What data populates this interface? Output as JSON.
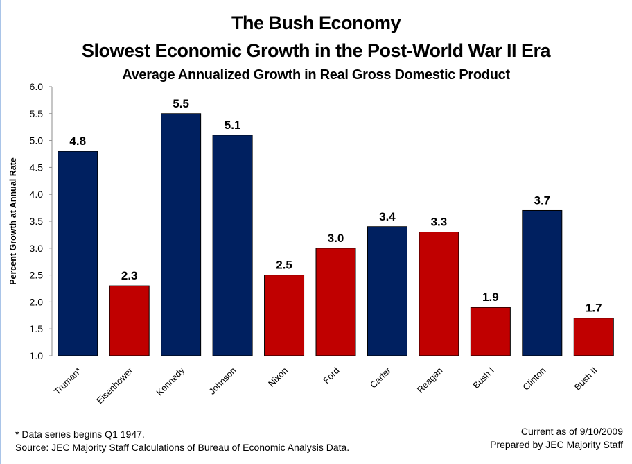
{
  "chart_data": {
    "type": "bar",
    "title": "The Bush Economy",
    "subtitle": "Slowest Economic Growth in the Post-World War II Era",
    "subtitle2": "Average Annualized Growth in Real Gross Domestic Product",
    "xlabel": "",
    "ylabel": "Percent Growth at Annual Rate",
    "ylim": [
      1.0,
      6.0
    ],
    "yticks": [
      "1.0",
      "1.5",
      "2.0",
      "2.5",
      "3.0",
      "3.5",
      "4.0",
      "4.5",
      "5.0",
      "5.5",
      "6.0"
    ],
    "grid": false,
    "legend": "none",
    "categories": [
      "Truman*",
      "Eisenhower",
      "Kennedy",
      "Johnson",
      "Nixon",
      "Ford",
      "Carter",
      "Reagan",
      "Bush I",
      "Clinton",
      "Bush II"
    ],
    "values": [
      4.8,
      2.3,
      5.5,
      5.1,
      2.5,
      3.0,
      3.4,
      3.3,
      1.9,
      3.7,
      1.7
    ],
    "value_labels": [
      "4.8",
      "2.3",
      "5.5",
      "5.1",
      "2.5",
      "3.0",
      "3.4",
      "3.3",
      "1.9",
      "3.7",
      "1.7"
    ],
    "party": [
      "D",
      "R",
      "D",
      "D",
      "R",
      "R",
      "D",
      "R",
      "R",
      "D",
      "R"
    ],
    "colors": {
      "D": "#002060",
      "R": "#c00000"
    }
  },
  "footnotes": {
    "note": "* Data series begins Q1 1947.",
    "source": "Source: JEC Majority Staff Calculations of Bureau of Economic Analysis Data.",
    "current_as_of": "Current as of 9/10/2009",
    "prepared_by": "Prepared by JEC Majority Staff"
  }
}
